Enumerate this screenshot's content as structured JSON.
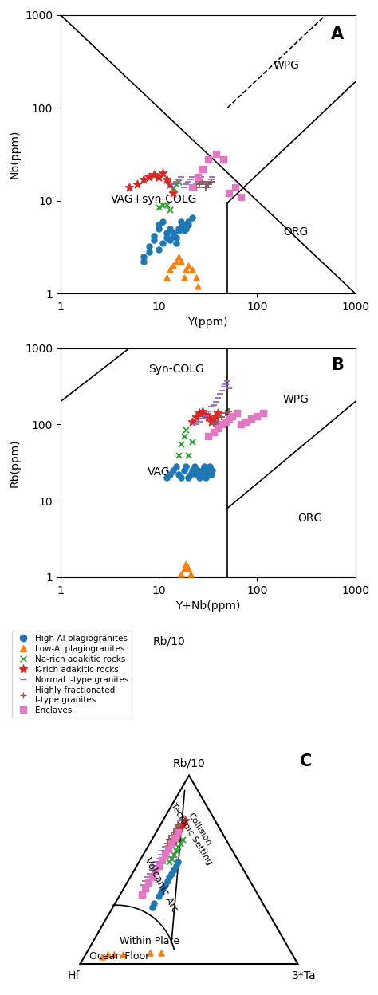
{
  "chart_data": [
    {
      "type": "scatter",
      "title": "A",
      "xlabel": "Y(ppm)",
      "ylabel": "Nb(ppm)",
      "log": true,
      "xlim": [
        1,
        1000
      ],
      "ylim": [
        1,
        1000
      ],
      "xticks": [
        1,
        10,
        100,
        1000
      ],
      "yticks": [
        1,
        10,
        100,
        1000
      ],
      "grid": false,
      "legend": "upper left",
      "boundaries": [
        {
          "x": [
            1,
            1000
          ],
          "y": [
            1000,
            1
          ],
          "line_style": "solid"
        },
        {
          "x": [
            50,
            50
          ],
          "y": [
            1,
            9.5
          ],
          "line_style": "solid"
        },
        {
          "x": [
            50,
            1000
          ],
          "y": [
            9.5,
            190
          ],
          "line_style": "solid"
        },
        {
          "x": [
            50,
            1000
          ],
          "y": [
            100,
            2000
          ],
          "line_style": "dashed"
        }
      ],
      "annotations": [
        {
          "text": "WPG",
          "x": 200,
          "y": 250
        },
        {
          "text": "VAG+syn-COLG",
          "x": 9,
          "y": 9
        },
        {
          "text": "ORG",
          "x": 250,
          "y": 4
        }
      ],
      "series": [
        {
          "name": "High-Al plagiogranites",
          "marker": "o",
          "x": [
            7,
            7,
            8,
            8,
            9,
            9,
            10,
            10,
            11,
            12,
            13,
            14,
            15,
            16,
            17,
            18,
            20,
            22,
            10,
            11,
            12,
            13,
            14,
            15,
            16,
            17,
            18,
            19,
            20
          ],
          "y": [
            2.2,
            2.5,
            2.8,
            3.2,
            3.8,
            4.2,
            5,
            5.5,
            6,
            4.5,
            5,
            4.5,
            4,
            5,
            6,
            5.5,
            6,
            6.5,
            3,
            3.5,
            4,
            3.8,
            4.2,
            3.5,
            4.8,
            5.2,
            4.8,
            5.0,
            5.5
          ]
        },
        {
          "name": "Low-Al plagiogranites",
          "marker": "^",
          "x": [
            12,
            13,
            14,
            15,
            16,
            17,
            18,
            19,
            20,
            22,
            24,
            25
          ],
          "y": [
            1.5,
            1.8,
            2.0,
            2.2,
            2.5,
            2.2,
            1.5,
            1.8,
            2.0,
            1.8,
            1.5,
            1.2
          ]
        },
        {
          "name": "Na-rich adakitic rocks",
          "marker": "x",
          "x": [
            10,
            11,
            12,
            13,
            14,
            15,
            16
          ],
          "y": [
            8.5,
            9,
            9,
            8,
            14,
            15,
            16
          ]
        },
        {
          "name": "K-rich adakitic rocks",
          "marker": "*",
          "x": [
            5,
            6,
            7,
            8,
            9,
            10,
            11,
            12,
            13,
            14
          ],
          "y": [
            14,
            15,
            17,
            18,
            19,
            18,
            20,
            17,
            15,
            12
          ]
        },
        {
          "name": "Normal I-type granites",
          "marker": "_",
          "x": [
            13,
            14,
            15,
            16,
            17,
            18,
            19,
            20,
            21,
            22,
            23,
            24,
            25,
            26,
            27,
            28,
            29,
            30,
            31,
            32,
            33,
            34,
            35
          ],
          "y": [
            14,
            15,
            16,
            17,
            18,
            14,
            15,
            16,
            17,
            18,
            14,
            15,
            16,
            17,
            18,
            14,
            15,
            16,
            14,
            15,
            16,
            17,
            18
          ]
        },
        {
          "name": "Highly fractionated\nI-type granites",
          "marker": "+",
          "x": [
            24,
            26,
            28,
            30,
            32,
            34
          ],
          "y": [
            14,
            15,
            16,
            14,
            15,
            16
          ]
        },
        {
          "name": "Enclaves",
          "marker": "s",
          "x": [
            22,
            25,
            28,
            32,
            38,
            45,
            52,
            60,
            68
          ],
          "y": [
            14,
            18,
            22,
            28,
            32,
            28,
            12,
            14,
            11
          ]
        }
      ]
    },
    {
      "type": "scatter",
      "title": "B",
      "xlabel": "Y+Nb(ppm)",
      "ylabel": "Rb(ppm)",
      "log": true,
      "xlim": [
        1,
        1000
      ],
      "ylim": [
        1,
        1000
      ],
      "xticks": [
        1,
        10,
        100,
        1000
      ],
      "yticks": [
        1,
        10,
        100,
        1000
      ],
      "grid": false,
      "boundaries": [
        {
          "x": [
            1,
            60
          ],
          "y": [
            200,
            12000
          ],
          "line_style": "solid"
        },
        {
          "x": [
            50,
            50
          ],
          "y": [
            1,
            1000
          ],
          "line_style": "solid"
        },
        {
          "x": [
            50,
            1000
          ],
          "y": [
            8,
            200
          ],
          "line_style": "solid"
        }
      ],
      "annotations": [
        {
          "text": "Syn-COLG",
          "x": 15,
          "y": 450
        },
        {
          "text": "WPG",
          "x": 250,
          "y": 180
        },
        {
          "text": "ORG",
          "x": 350,
          "y": 5
        },
        {
          "text": "VAG",
          "x": 10,
          "y": 20
        }
      ],
      "series": [
        {
          "name": "High-Al plagiogranites",
          "marker": "o",
          "x": [
            12,
            13,
            14,
            15,
            16,
            17,
            18,
            19,
            20,
            21,
            22,
            23,
            24,
            25,
            26,
            27,
            28,
            29,
            30,
            31,
            32,
            33,
            34,
            35
          ],
          "y": [
            20,
            22,
            25,
            28,
            22,
            20,
            25,
            28,
            20,
            22,
            25,
            28,
            22,
            25,
            20,
            22,
            25,
            28,
            20,
            22,
            25,
            28,
            22,
            25
          ]
        },
        {
          "name": "Low-Al plagiogranites",
          "marker": "^",
          "x": [
            17,
            18,
            19,
            20,
            21
          ],
          "y": [
            1.1,
            1.3,
            1.5,
            1.3,
            1.1
          ]
        },
        {
          "name": "Na-rich adakitic rocks",
          "marker": "x",
          "x": [
            16,
            17,
            18,
            19,
            20,
            22
          ],
          "y": [
            40,
            55,
            70,
            85,
            40,
            60
          ]
        },
        {
          "name": "K-rich adakitic rocks",
          "marker": "*",
          "x": [
            22,
            24,
            26,
            28,
            30,
            32,
            34,
            36,
            38,
            40
          ],
          "y": [
            110,
            125,
            140,
            150,
            135,
            125,
            110,
            120,
            130,
            140
          ]
        },
        {
          "name": "Normal I-type granites",
          "marker": "_",
          "x": [
            24,
            26,
            28,
            30,
            32,
            34,
            36,
            38,
            40,
            42,
            44,
            46,
            48,
            50,
            52
          ],
          "y": [
            100,
            110,
            120,
            130,
            150,
            170,
            180,
            200,
            225,
            255,
            280,
            310,
            340,
            370,
            300
          ]
        },
        {
          "name": "Highly fractionated\nI-type granites",
          "marker": "+",
          "x": [
            36,
            40,
            44,
            48,
            52
          ],
          "y": [
            100,
            110,
            125,
            140,
            150
          ]
        },
        {
          "name": "Enclaves",
          "marker": "s",
          "x": [
            32,
            36,
            40,
            44,
            48,
            52,
            56,
            62,
            68,
            76,
            88,
            100,
            115
          ],
          "y": [
            70,
            80,
            90,
            100,
            110,
            120,
            130,
            140,
            100,
            110,
            120,
            130,
            140
          ]
        }
      ]
    },
    {
      "type": "ternary",
      "title": "C",
      "corner_labels": [
        "Hf",
        "Rb/10",
        "3*Ta"
      ],
      "boundaries": [
        {
          "points": [
            [
              0.06,
              0.92,
              0.02
            ],
            [
              0.52,
              0.12,
              0.36
            ]
          ],
          "line_style": "solid"
        }
      ],
      "arc": {
        "center": [
          0.17,
          0.0
        ],
        "radius": 0.27,
        "start_deg": 14.4,
        "end_deg": 129.6
      },
      "annotations": [
        {
          "text": "Collision\nTectonic Setting",
          "position": [
            0.12,
            0.7,
            0.18
          ]
        },
        {
          "text": "Volcanic Arc",
          "position": [
            0.42,
            0.42,
            0.16
          ]
        },
        {
          "text": "Within Plate",
          "position": [
            0.62,
            0.12,
            0.26
          ]
        },
        {
          "text": "Ocean Floor",
          "position": [
            0.8,
            0.04,
            0.16
          ]
        },
        {
          "text": "Rb/10"
        }
      ],
      "series": [
        {
          "name": "High-Al plagiogranites",
          "marker": "o",
          "values": [
            [
              0.42,
              0.4,
              0.18
            ],
            [
              0.4,
              0.42,
              0.18
            ],
            [
              0.38,
              0.44,
              0.18
            ],
            [
              0.36,
              0.46,
              0.18
            ],
            [
              0.34,
              0.48,
              0.18
            ],
            [
              0.32,
              0.5,
              0.18
            ],
            [
              0.3,
              0.52,
              0.18
            ],
            [
              0.28,
              0.54,
              0.18
            ],
            [
              0.44,
              0.38,
              0.18
            ],
            [
              0.46,
              0.36,
              0.18
            ],
            [
              0.5,
              0.32,
              0.18
            ],
            [
              0.52,
              0.3,
              0.18
            ]
          ]
        },
        {
          "name": "Low-Al plagiogranites",
          "marker": "^",
          "values": [
            [
              0.88,
              0.04,
              0.08
            ],
            [
              0.85,
              0.05,
              0.1
            ],
            [
              0.82,
              0.05,
              0.13
            ],
            [
              0.78,
              0.05,
              0.17
            ],
            [
              0.65,
              0.06,
              0.29
            ],
            [
              0.6,
              0.06,
              0.34
            ]
          ]
        },
        {
          "name": "Na-rich adakitic rocks",
          "marker": "x",
          "values": [
            [
              0.28,
              0.58,
              0.14
            ],
            [
              0.26,
              0.6,
              0.14
            ],
            [
              0.24,
              0.62,
              0.14
            ],
            [
              0.22,
              0.64,
              0.14
            ],
            [
              0.2,
              0.66,
              0.14
            ],
            [
              0.32,
              0.54,
              0.14
            ],
            [
              0.3,
              0.56,
              0.14
            ]
          ]
        },
        {
          "name": "K-rich adakitic rocks",
          "marker": "*",
          "values": [
            [
              0.18,
              0.72,
              0.1
            ],
            [
              0.16,
              0.74,
              0.1
            ],
            [
              0.14,
              0.76,
              0.1
            ],
            [
              0.2,
              0.7,
              0.1
            ],
            [
              0.22,
              0.68,
              0.1
            ],
            [
              0.24,
              0.66,
              0.1
            ],
            [
              0.26,
              0.64,
              0.1
            ],
            [
              0.28,
              0.62,
              0.1
            ]
          ]
        },
        {
          "name": "Normal I-type granites",
          "marker": "_",
          "values": [
            [
              0.16,
              0.76,
              0.08
            ],
            [
              0.18,
              0.74,
              0.08
            ],
            [
              0.2,
              0.72,
              0.08
            ],
            [
              0.22,
              0.7,
              0.08
            ],
            [
              0.24,
              0.68,
              0.08
            ],
            [
              0.26,
              0.66,
              0.08
            ],
            [
              0.28,
              0.64,
              0.08
            ],
            [
              0.3,
              0.62,
              0.08
            ],
            [
              0.32,
              0.6,
              0.08
            ],
            [
              0.34,
              0.58,
              0.08
            ],
            [
              0.36,
              0.56,
              0.08
            ],
            [
              0.38,
              0.54,
              0.08
            ],
            [
              0.4,
              0.52,
              0.08
            ],
            [
              0.42,
              0.5,
              0.08
            ],
            [
              0.44,
              0.48,
              0.08
            ],
            [
              0.46,
              0.46,
              0.08
            ],
            [
              0.48,
              0.44,
              0.08
            ],
            [
              0.5,
              0.42,
              0.08
            ]
          ]
        },
        {
          "name": "Highly fractionated\nI-type granites",
          "marker": "+",
          "values": [
            [
              0.18,
              0.74,
              0.08
            ],
            [
              0.2,
              0.72,
              0.08
            ],
            [
              0.22,
              0.7,
              0.08
            ],
            [
              0.24,
              0.68,
              0.08
            ],
            [
              0.26,
              0.66,
              0.08
            ],
            [
              0.28,
              0.64,
              0.08
            ]
          ]
        },
        {
          "name": "Enclaves",
          "marker": "s",
          "values": [
            [
              0.2,
              0.7,
              0.1
            ],
            [
              0.23,
              0.67,
              0.1
            ],
            [
              0.26,
              0.64,
              0.1
            ],
            [
              0.29,
              0.61,
              0.1
            ],
            [
              0.32,
              0.58,
              0.1
            ],
            [
              0.35,
              0.55,
              0.1
            ],
            [
              0.38,
              0.52,
              0.1
            ],
            [
              0.41,
              0.49,
              0.1
            ],
            [
              0.44,
              0.46,
              0.1
            ],
            [
              0.47,
              0.43,
              0.1
            ],
            [
              0.5,
              0.4,
              0.1
            ],
            [
              0.53,
              0.37,
              0.1
            ]
          ]
        }
      ]
    }
  ]
}
